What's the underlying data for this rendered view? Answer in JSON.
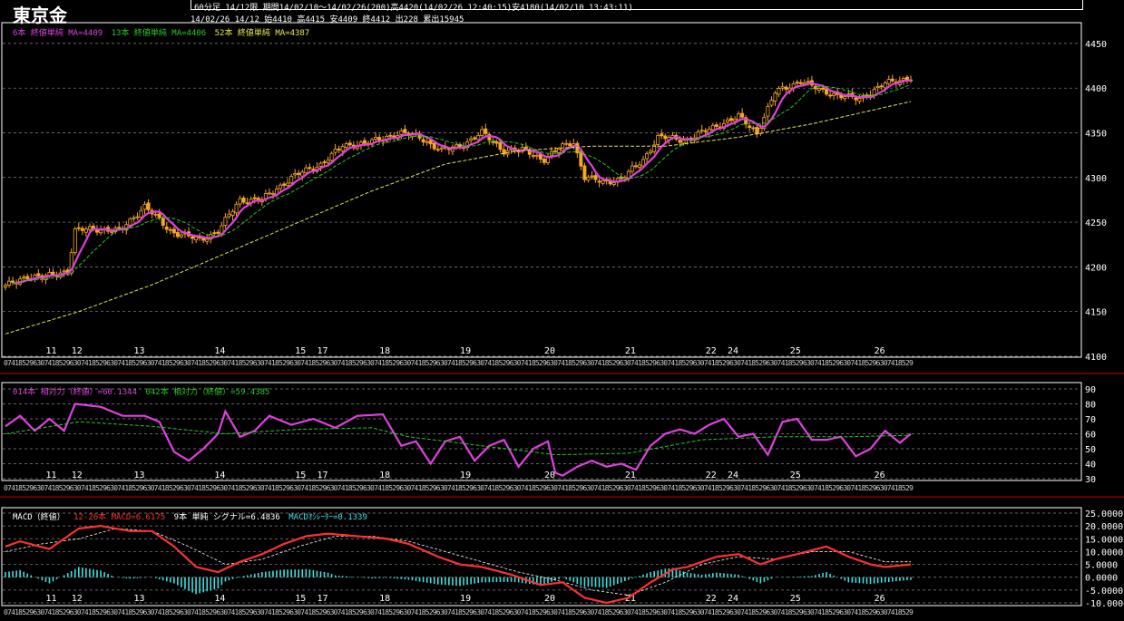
{
  "header": {
    "title": "東京金",
    "line1": "60分足 14/12限  期間14/02/10～14/02/26(200)高4420(14/02/26 12:40:15)安4180(14/02/10 13:43:11)",
    "line2": "14/02/26 14/12 始4410 高4415 安4409 終4412 出228 累出15945"
  },
  "legends": {
    "price": [
      {
        "text": "6本 終値単純 MA=4409",
        "color": "#e040e0"
      },
      {
        "text": "13本 終値単純 MA=4406",
        "color": "#22cc22"
      },
      {
        "text": "52本 終値単純 MA=4387",
        "color": "#e6e64c"
      }
    ],
    "rsi": [
      {
        "text": "014本 相対力（終値）=60.1344",
        "color": "#e040e0"
      },
      {
        "text": "042本 相対力（終値）=59.4385",
        "color": "#22cc22"
      }
    ],
    "macd": [
      {
        "text": "MACD（終値）",
        "color": "#ffffff"
      },
      {
        "text": "12-26本 MACD=6.6175",
        "color": "#ff3030"
      },
      {
        "text": "9本 単純 シグナル=6.4836",
        "color": "#ffffff"
      },
      {
        "text": "MACDｵｼﾚｰﾀｰ=0.1339",
        "color": "#40e0e0"
      }
    ]
  },
  "chart_data": [
    {
      "type": "candlestick",
      "panel": "price",
      "ylim": [
        4100,
        4460
      ],
      "yticks": [
        4100,
        4150,
        4200,
        4250,
        4300,
        4350,
        4400,
        4450
      ],
      "x_date_labels": [
        {
          "label": "11",
          "bar": 12
        },
        {
          "label": "12",
          "bar": 19
        },
        {
          "label": "13",
          "bar": 36
        },
        {
          "label": "14",
          "bar": 58
        },
        {
          "label": "15",
          "bar": 80
        },
        {
          "label": "17",
          "bar": 86
        },
        {
          "label": "18",
          "bar": 103
        },
        {
          "label": "19",
          "bar": 125
        },
        {
          "label": "20",
          "bar": 148
        },
        {
          "label": "21",
          "bar": 170
        },
        {
          "label": "22",
          "bar": 192
        },
        {
          "label": "24",
          "bar": 198
        },
        {
          "label": "25",
          "bar": 215
        },
        {
          "label": "26",
          "bar": 238
        }
      ],
      "close_anchors": [
        [
          0,
          4178
        ],
        [
          6,
          4190
        ],
        [
          10,
          4188
        ],
        [
          17,
          4196
        ],
        [
          19,
          4240
        ],
        [
          24,
          4243
        ],
        [
          31,
          4240
        ],
        [
          38,
          4268
        ],
        [
          45,
          4240
        ],
        [
          53,
          4230
        ],
        [
          58,
          4240
        ],
        [
          64,
          4275
        ],
        [
          70,
          4275
        ],
        [
          78,
          4300
        ],
        [
          86,
          4315
        ],
        [
          92,
          4335
        ],
        [
          100,
          4340
        ],
        [
          108,
          4350
        ],
        [
          113,
          4345
        ],
        [
          119,
          4330
        ],
        [
          124,
          4335
        ],
        [
          130,
          4350
        ],
        [
          136,
          4330
        ],
        [
          142,
          4330
        ],
        [
          147,
          4320
        ],
        [
          152,
          4335
        ],
        [
          155,
          4340
        ],
        [
          158,
          4300
        ],
        [
          163,
          4295
        ],
        [
          168,
          4298
        ],
        [
          174,
          4320
        ],
        [
          178,
          4345
        ],
        [
          186,
          4342
        ],
        [
          194,
          4358
        ],
        [
          200,
          4368
        ],
        [
          205,
          4350
        ],
        [
          210,
          4395
        ],
        [
          217,
          4408
        ],
        [
          222,
          4398
        ],
        [
          229,
          4390
        ],
        [
          233,
          4388
        ],
        [
          240,
          4405
        ],
        [
          247,
          4412
        ]
      ],
      "series": [
        {
          "name": "6本 終値単純 MA",
          "period": 6,
          "color": "#e040e0"
        },
        {
          "name": "13本 終値単純 MA",
          "period": 13,
          "color": "#22cc22"
        },
        {
          "name": "52本 終値単純 MA",
          "period": 52,
          "color": "#e6e64c"
        }
      ]
    },
    {
      "type": "line",
      "panel": "rsi",
      "ylim": [
        30,
        90
      ],
      "yticks": [
        30,
        40,
        50,
        60,
        70,
        80,
        90
      ],
      "series": [
        {
          "name": "014本 相対力（終値）",
          "color": "#e040e0",
          "anchors": [
            [
              0,
              65
            ],
            [
              4,
              72
            ],
            [
              8,
              62
            ],
            [
              12,
              70
            ],
            [
              16,
              62
            ],
            [
              19,
              80
            ],
            [
              26,
              78
            ],
            [
              32,
              72
            ],
            [
              38,
              72
            ],
            [
              42,
              68
            ],
            [
              46,
              48
            ],
            [
              50,
              42
            ],
            [
              54,
              50
            ],
            [
              58,
              60
            ],
            [
              60,
              75
            ],
            [
              64,
              58
            ],
            [
              68,
              62
            ],
            [
              72,
              72
            ],
            [
              78,
              66
            ],
            [
              84,
              70
            ],
            [
              90,
              64
            ],
            [
              96,
              72
            ],
            [
              103,
              73
            ],
            [
              108,
              52
            ],
            [
              112,
              55
            ],
            [
              116,
              40
            ],
            [
              120,
              55
            ],
            [
              124,
              58
            ],
            [
              128,
              42
            ],
            [
              132,
              52
            ],
            [
              136,
              56
            ],
            [
              140,
              38
            ],
            [
              144,
              50
            ],
            [
              148,
              55
            ],
            [
              150,
              34
            ],
            [
              152,
              32
            ],
            [
              156,
              38
            ],
            [
              160,
              42
            ],
            [
              164,
              38
            ],
            [
              168,
              40
            ],
            [
              172,
              36
            ],
            [
              176,
              52
            ],
            [
              180,
              60
            ],
            [
              184,
              63
            ],
            [
              188,
              60
            ],
            [
              192,
              66
            ],
            [
              196,
              70
            ],
            [
              200,
              58
            ],
            [
              204,
              60
            ],
            [
              208,
              46
            ],
            [
              212,
              68
            ],
            [
              216,
              70
            ],
            [
              220,
              56
            ],
            [
              224,
              56
            ],
            [
              228,
              58
            ],
            [
              232,
              45
            ],
            [
              236,
              50
            ],
            [
              240,
              62
            ],
            [
              244,
              54
            ],
            [
              247,
              60
            ]
          ]
        },
        {
          "name": "042本 相対力（終値）",
          "color": "#22cc22",
          "anchors": [
            [
              0,
              60
            ],
            [
              20,
              68
            ],
            [
              40,
              65
            ],
            [
              60,
              60
            ],
            [
              80,
              63
            ],
            [
              100,
              64
            ],
            [
              110,
              58
            ],
            [
              130,
              52
            ],
            [
              150,
              46
            ],
            [
              170,
              47
            ],
            [
              190,
              56
            ],
            [
              210,
              58
            ],
            [
              230,
              58
            ],
            [
              247,
              59
            ]
          ]
        }
      ]
    },
    {
      "type": "line",
      "panel": "macd",
      "ylim": [
        -10,
        25
      ],
      "yticks": [
        -10,
        -5,
        0,
        5,
        10,
        15,
        20,
        25
      ],
      "series": [
        {
          "name": "12-26本 MACD",
          "color": "#ff3030",
          "anchors": [
            [
              0,
              12
            ],
            [
              4,
              14
            ],
            [
              12,
              11
            ],
            [
              20,
              19
            ],
            [
              26,
              20
            ],
            [
              34,
              18
            ],
            [
              40,
              18
            ],
            [
              46,
              12
            ],
            [
              52,
              4
            ],
            [
              58,
              2
            ],
            [
              64,
              6
            ],
            [
              70,
              9
            ],
            [
              76,
              13
            ],
            [
              82,
              16
            ],
            [
              88,
              17
            ],
            [
              96,
              16
            ],
            [
              104,
              15
            ],
            [
              110,
              13
            ],
            [
              118,
              8
            ],
            [
              124,
              5
            ],
            [
              130,
              4
            ],
            [
              138,
              1
            ],
            [
              146,
              -3
            ],
            [
              152,
              -2
            ],
            [
              158,
              -8
            ],
            [
              164,
              -10
            ],
            [
              170,
              -8
            ],
            [
              176,
              -2
            ],
            [
              182,
              3
            ],
            [
              186,
              4
            ],
            [
              194,
              8
            ],
            [
              200,
              9
            ],
            [
              206,
              5
            ],
            [
              210,
              7
            ],
            [
              216,
              9
            ],
            [
              224,
              12
            ],
            [
              230,
              8
            ],
            [
              236,
              5
            ],
            [
              240,
              4
            ],
            [
              247,
              5
            ]
          ]
        },
        {
          "name": "9本 単純 シグナル",
          "color": "#ffffff",
          "anchors": [
            [
              0,
              10
            ],
            [
              10,
              13
            ],
            [
              20,
              15
            ],
            [
              30,
              19
            ],
            [
              40,
              18
            ],
            [
              50,
              12
            ],
            [
              60,
              5
            ],
            [
              70,
              7
            ],
            [
              80,
              12
            ],
            [
              90,
              16
            ],
            [
              100,
              16
            ],
            [
              110,
              14
            ],
            [
              120,
              10
            ],
            [
              130,
              6
            ],
            [
              140,
              2
            ],
            [
              150,
              -1
            ],
            [
              160,
              -5
            ],
            [
              170,
              -7
            ],
            [
              180,
              -2
            ],
            [
              190,
              5
            ],
            [
              200,
              8
            ],
            [
              210,
              7
            ],
            [
              220,
              10
            ],
            [
              230,
              10
            ],
            [
              240,
              6
            ],
            [
              247,
              6
            ]
          ]
        },
        {
          "name": "MACDｵｼﾚｰﾀｰ",
          "color": "#40e0e0",
          "kind": "histogram"
        }
      ]
    }
  ]
}
